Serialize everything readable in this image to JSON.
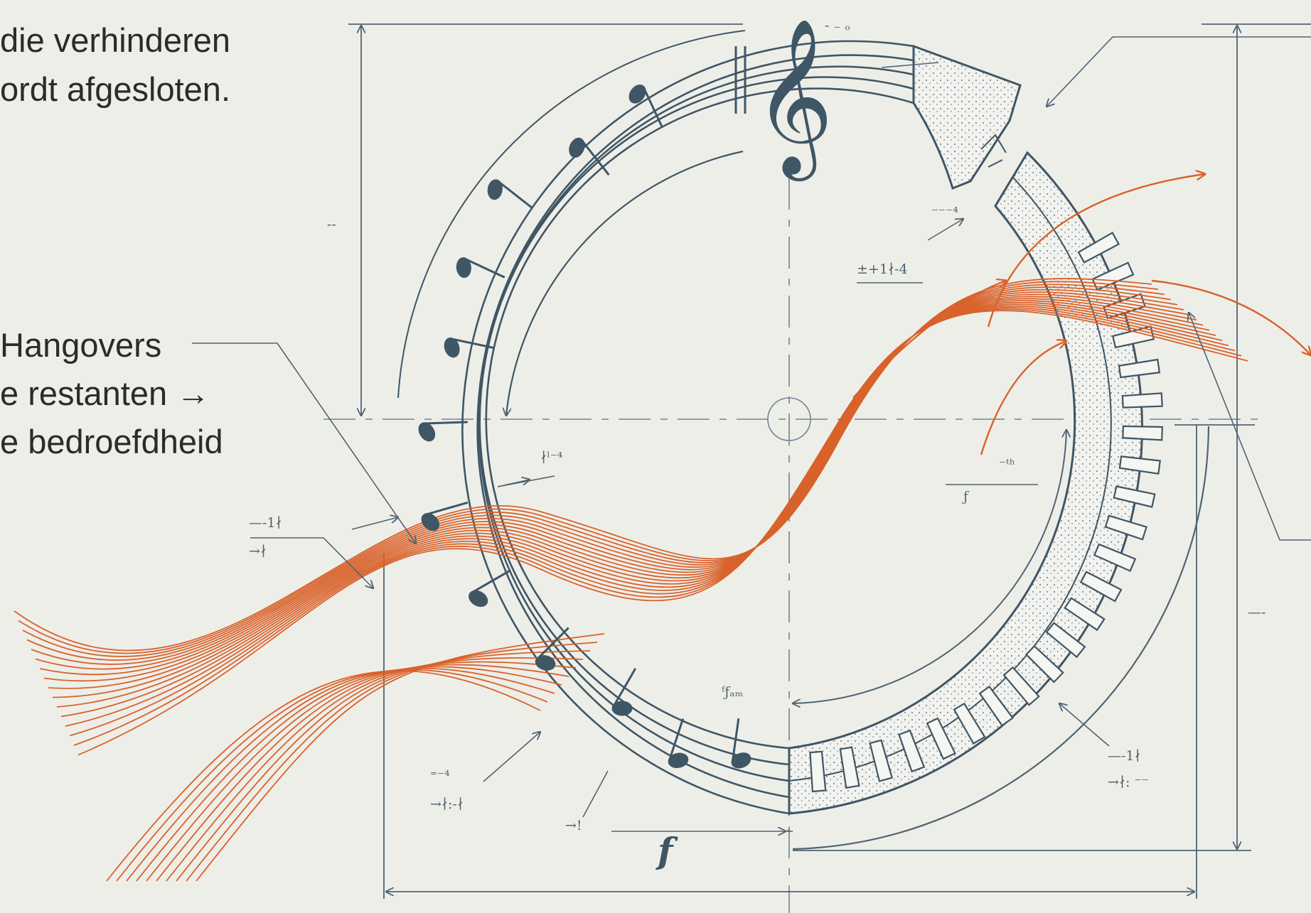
{
  "colors": {
    "background": "#eeeee9",
    "ink": "#3f5665",
    "ink_light": "#6f8594",
    "accent": "#d9622b",
    "text": "#2b2b2b"
  },
  "captions": {
    "top_line1": "die verhinderen",
    "top_line2": "ordt afgesloten.",
    "mid_line1": "Hangovers",
    "mid_line2": "e restanten →",
    "mid_line3": "e bedroefdheid"
  },
  "annotations": {
    "a1": "±+1∤-4",
    "a2": "∤ˡ⁻⁴",
    "a3": "⁻⁻⁻⁴",
    "a4": "⁻ᵗʰ",
    "a5": "ƒ",
    "a6": "—-1∤",
    "a7": "→∤",
    "a8": "⁼⁻⁴",
    "a9": "→∤:-∤",
    "a10": "→!",
    "a11": "ᶠƒₐₘ",
    "a12": "—-1∤",
    "a13": "→∤: ⁻⁻",
    "a14": "--",
    "a15": "—-",
    "a16": "- ₋ ₒ"
  },
  "music": {
    "clef": "𝄞",
    "dynamic": "f"
  },
  "icons": [
    "treble-clef-icon",
    "music-note-icon",
    "arrow-icon"
  ]
}
